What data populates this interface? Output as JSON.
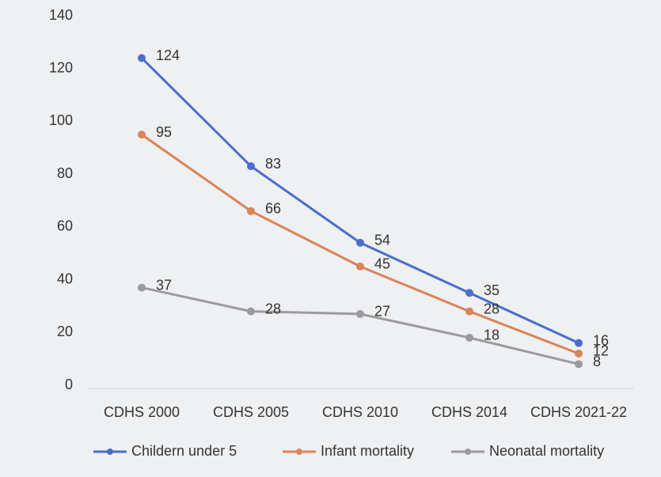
{
  "chart_data": {
    "type": "line",
    "categories": [
      "CDHS 2000",
      "CDHS 2005",
      "CDHS 2010",
      "CDHS 2014",
      "CDHS 2021-22"
    ],
    "series": [
      {
        "name": "Childern under 5",
        "color": "#4a6ecb",
        "values": [
          124,
          83,
          54,
          35,
          16
        ]
      },
      {
        "name": "Infant mortality",
        "color": "#d98459",
        "values": [
          95,
          66,
          45,
          28,
          12
        ]
      },
      {
        "name": "Neonatal mortality",
        "color": "#9b9b9d",
        "values": [
          37,
          28,
          27,
          18,
          8
        ]
      }
    ],
    "ylim": [
      0,
      140
    ],
    "yticks": [
      0,
      20,
      40,
      60,
      80,
      100,
      120,
      140
    ],
    "grid": false,
    "legend": "bottom"
  }
}
